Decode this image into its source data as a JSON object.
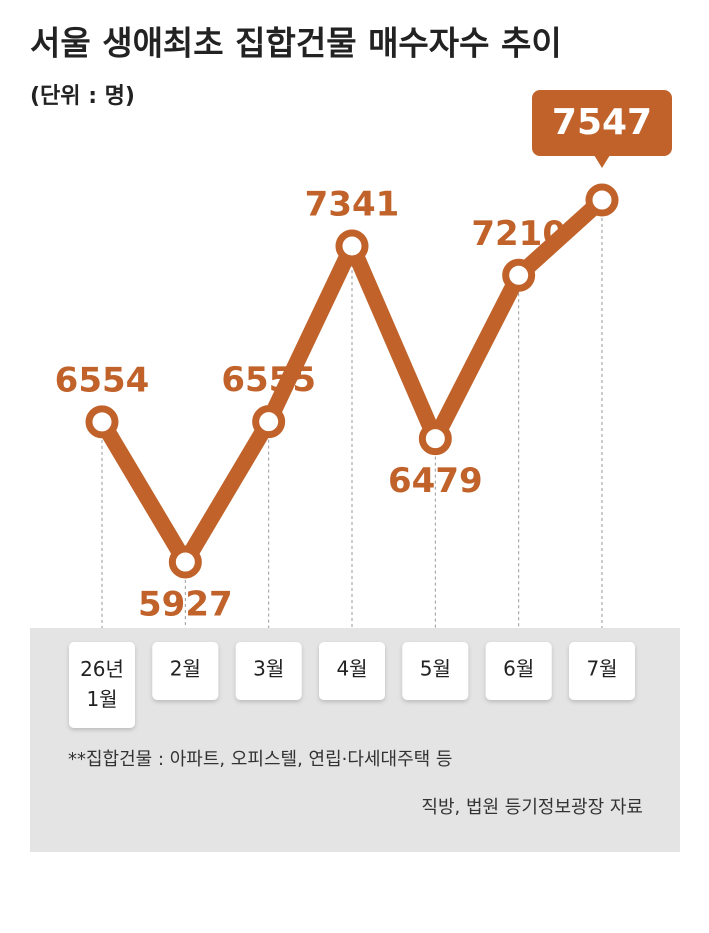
{
  "chart_data": {
    "type": "line",
    "title": "서울 생애최초 집합건물 매수자수 추이",
    "subtitle": "(단위 : 명)",
    "categories": [
      "26년 1월",
      "2월",
      "3월",
      "4월",
      "5월",
      "6월",
      "7월"
    ],
    "values": [
      6554,
      5927,
      6555,
      7341,
      6479,
      7210,
      7547
    ],
    "color": "#c0622a",
    "note": "**집합건물 : 아파트, 오피스텔, 연립·다세대주택 등",
    "source": "직방, 법원 등기정보광장 자료"
  }
}
